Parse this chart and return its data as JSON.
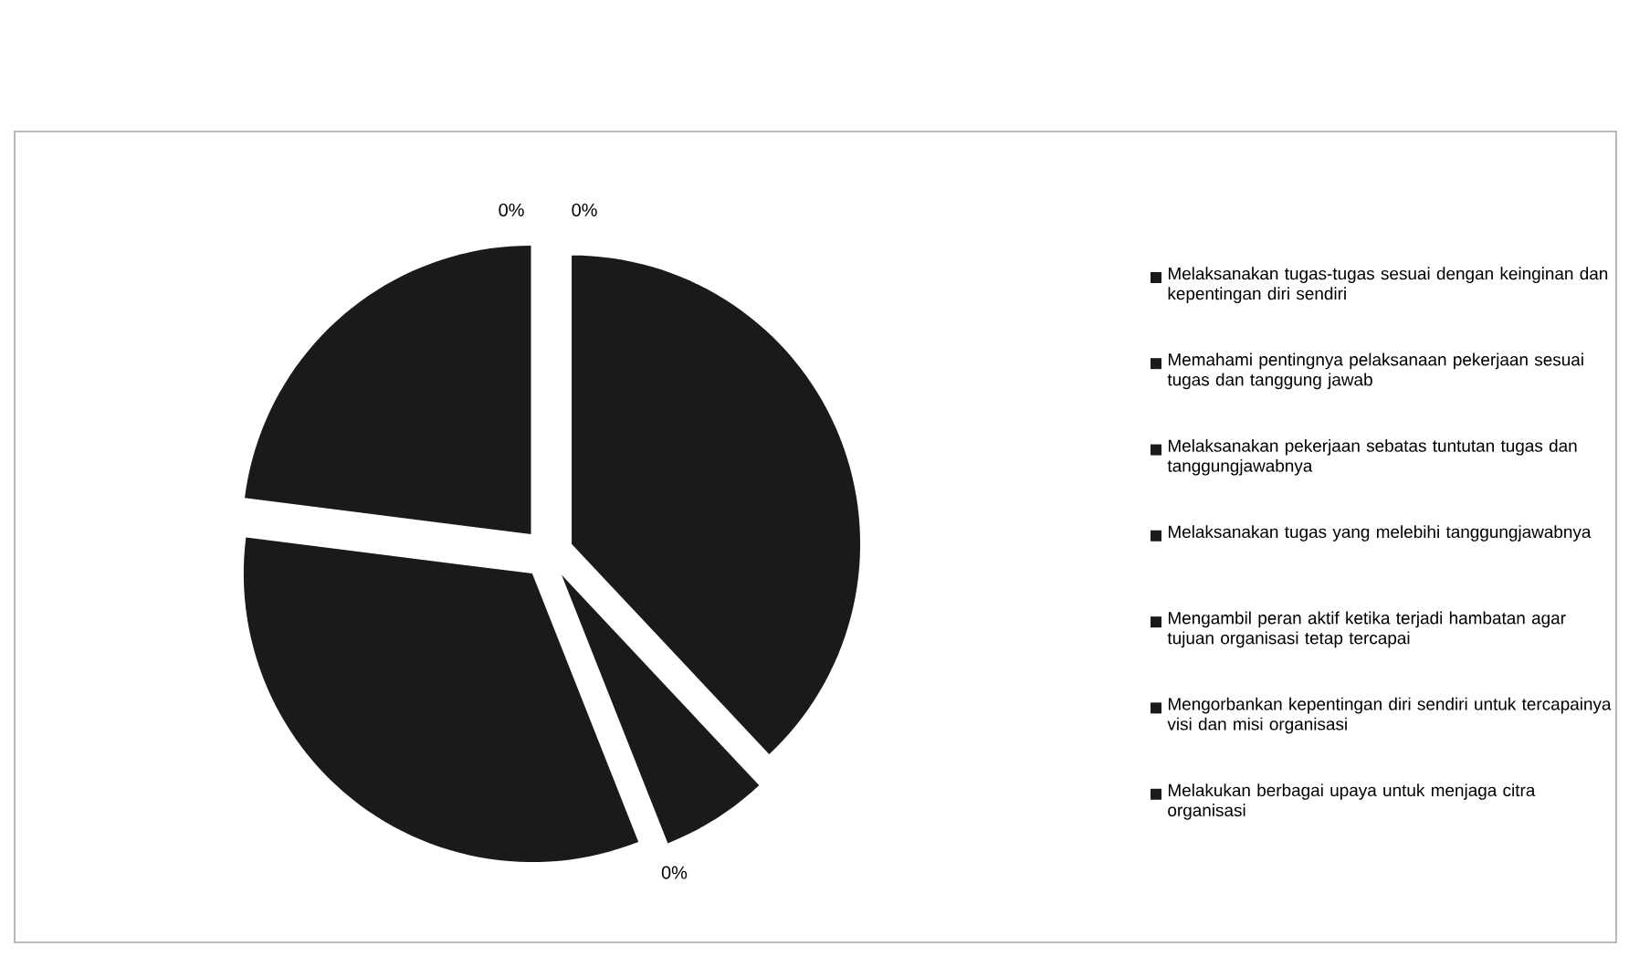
{
  "chart_data": {
    "type": "pie",
    "categories": [
      "Melaksanakan tugas-tugas sesuai dengan keinginan dan kepentingan diri sendiri",
      "Memahami pentingnya pelaksanaan pekerjaan sesuai tugas dan tanggung jawab",
      "Melaksanakan pekerjaan sebatas tuntutan tugas dan tanggungjawabnya",
      "Melaksanakan tugas yang melebihi tanggungjawabnya",
      "Mengambil peran aktif ketika terjadi hambatan agar tujuan organisasi tetap tercapai",
      "Mengorbankan kepentingan diri sendiri untuk tercapainya visi dan misi organisasi",
      "Melakukan berbagai upaya untuk menjaga citra organisasi"
    ],
    "values": [
      0,
      0,
      38,
      6,
      0,
      33,
      23
    ],
    "colors": [
      "#1a1a1a",
      "#1a1a1a",
      "#1a1a1a",
      "#1a1a1a",
      "#1a1a1a",
      "#1a1a1a",
      "#1a1a1a"
    ],
    "value_labels": [
      "0%",
      "0%",
      null,
      null,
      "0%",
      null,
      null
    ],
    "legend": "right"
  }
}
